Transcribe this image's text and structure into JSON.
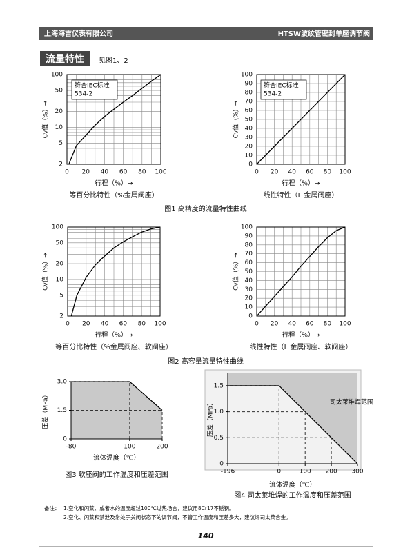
{
  "header": {
    "company": "上海海吉仪表有限公司",
    "product": "HTSW波纹管密封单座调节阀"
  },
  "section": {
    "title": "流量特性",
    "reference": "见图1、2"
  },
  "figure_captions": [
    "图1  高精度的流量特性曲线",
    "图2  高容量流量特性曲线"
  ],
  "chart_data": [
    {
      "type": "line",
      "log_y": true,
      "grid": true,
      "ylabel": "Cv值（%）→",
      "xlabel": "行程（%）→",
      "caption": "等百分比特性（%金属阀座）",
      "annotation": [
        "符合IEC标准",
        "534-2"
      ],
      "xlim": [
        0,
        100
      ],
      "ylim": [
        2,
        100
      ],
      "xticks": [
        0,
        20,
        40,
        60,
        80,
        100
      ],
      "xgrid": [
        10,
        30,
        50,
        70,
        90
      ],
      "yticks": [
        2,
        5,
        10,
        20,
        50,
        100
      ],
      "ygrid": [
        3,
        4,
        6,
        7,
        8,
        9,
        30,
        40,
        60,
        70,
        80,
        90
      ],
      "x": [
        2,
        10,
        20,
        30,
        40,
        50,
        60,
        70,
        80,
        90,
        100
      ],
      "values": [
        2,
        4.5,
        7,
        11,
        16,
        22,
        30,
        40,
        55,
        75,
        100
      ]
    },
    {
      "type": "line",
      "log_y": false,
      "grid": true,
      "ylabel": "Cv值（%）→",
      "xlabel": "行程（%）→",
      "caption": "线性特性（L 金属阀座）",
      "annotation": [
        "符合IEC标准",
        "534-2"
      ],
      "xlim": [
        0,
        100
      ],
      "ylim": [
        0,
        100
      ],
      "xticks": [
        0,
        20,
        40,
        60,
        80,
        100
      ],
      "xgrid": [
        10,
        30,
        50,
        70,
        90
      ],
      "yticks": [
        0,
        10,
        20,
        30,
        40,
        50,
        60,
        70,
        80,
        90,
        100
      ],
      "ygrid": [],
      "x": [
        0,
        100
      ],
      "values": [
        0,
        100
      ]
    },
    {
      "type": "line",
      "log_y": true,
      "grid": true,
      "ylabel": "Cv值（%）→",
      "xlabel": "行程（%）→",
      "caption": "等百分比特性（%金属阀座、软阀座）",
      "xlim": [
        0,
        100
      ],
      "ylim": [
        2,
        100
      ],
      "xticks": [
        0,
        20,
        40,
        60,
        80,
        100
      ],
      "xgrid": [
        10,
        30,
        50,
        70,
        90
      ],
      "yticks": [
        2,
        5,
        10,
        20,
        50,
        100
      ],
      "ygrid": [
        3,
        4,
        6,
        7,
        8,
        9,
        30,
        40,
        60,
        70,
        80,
        90
      ],
      "x": [
        4,
        10,
        20,
        30,
        40,
        50,
        60,
        70,
        80,
        90,
        100
      ],
      "values": [
        2,
        5,
        11,
        19,
        28,
        40,
        52,
        65,
        80,
        92,
        100
      ]
    },
    {
      "type": "line",
      "log_y": false,
      "grid": true,
      "ylabel": "Cv值（%）→",
      "xlabel": "行程（%）→",
      "caption": "线性特性（L 金属阀座、软阀座）",
      "xlim": [
        0,
        100
      ],
      "ylim": [
        0,
        100
      ],
      "xticks": [
        0,
        20,
        40,
        60,
        80,
        100
      ],
      "xgrid": [
        10,
        30,
        50,
        70,
        90
      ],
      "yticks": [
        0,
        10,
        20,
        30,
        40,
        50,
        60,
        70,
        80,
        90,
        100
      ],
      "ygrid": [],
      "x": [
        0,
        10,
        20,
        30,
        40,
        50,
        60,
        70,
        80,
        90,
        100
      ],
      "values": [
        0,
        11,
        22,
        33,
        44,
        56,
        67,
        78,
        88,
        96,
        100
      ]
    },
    {
      "type": "area",
      "fill_side": "below",
      "fill": "#c9c9c9",
      "ylabel": "压差（MPa）",
      "xlabel": "流体温度（℃）",
      "caption": "图3  软座阀的工作温度和压差范围",
      "xlim": [
        -80,
        200
      ],
      "ylim": [
        0,
        3
      ],
      "xticks": [
        -80,
        100,
        200
      ],
      "yticks": [
        0,
        1.5,
        {
          "value": 3,
          "label": "3.0"
        }
      ],
      "x": [
        -80,
        100,
        200
      ],
      "values": [
        3,
        3,
        1.5
      ],
      "guides": [
        {
          "x": 100,
          "y": 3
        },
        {
          "x": 200,
          "y": 1.5
        }
      ]
    },
    {
      "type": "area",
      "fill_side": "above",
      "fill": "#c9c9c9",
      "ylabel": "压差（MPa）",
      "xlabel": "流体温度（℃）",
      "caption": "图4  司太莱堆焊的工作温度和压差范围",
      "annotation": [
        "司太莱堆焊范围"
      ],
      "xlim": [
        -196,
        300
      ],
      "ylim": [
        0,
        1.75
      ],
      "xticks": [
        -196,
        0,
        100,
        200,
        300
      ],
      "yticks": [
        0,
        0.5,
        {
          "value": 1,
          "label": "1.0"
        },
        1.5
      ],
      "x": [
        -196,
        0,
        300
      ],
      "values": [
        1.5,
        1.5,
        0
      ],
      "guides": [
        {
          "x": 0,
          "y": 1.5
        },
        {
          "x": 100,
          "y": 1
        },
        {
          "x": 200,
          "y": 0.5
        }
      ]
    }
  ],
  "notes": {
    "label": "备注：",
    "items": [
      "1.空化和闪蒸、或者水的温度超过100℃过热场合，建议用8Cr17不锈钢。",
      "2.空化、闪蒸和禁泄及常处于关闭状态下的调节阀，不管工作温度和压差多大，建议焊司太莱合金。"
    ]
  },
  "page_number": 140
}
